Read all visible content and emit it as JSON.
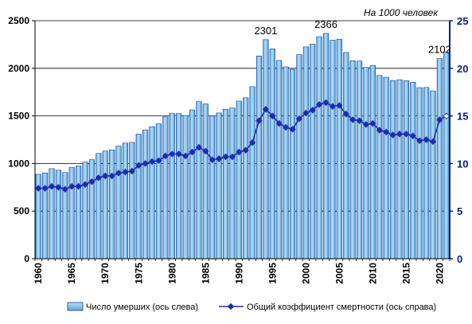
{
  "chart_data": {
    "type": "bar",
    "unit_label": "На 1000 человек",
    "x": [
      1960,
      1961,
      1962,
      1963,
      1964,
      1965,
      1966,
      1967,
      1968,
      1969,
      1970,
      1971,
      1972,
      1973,
      1974,
      1975,
      1976,
      1977,
      1978,
      1979,
      1980,
      1981,
      1982,
      1983,
      1984,
      1985,
      1986,
      1987,
      1988,
      1989,
      1990,
      1991,
      1992,
      1993,
      1994,
      1995,
      1996,
      1997,
      1998,
      1999,
      2000,
      2001,
      2002,
      2003,
      2004,
      2005,
      2006,
      2007,
      2008,
      2009,
      2010,
      2011,
      2012,
      2013,
      2014,
      2015,
      2016,
      2017,
      2018,
      2019,
      2020,
      2021
    ],
    "x_tick_labels": [
      "1960",
      "1965",
      "1970",
      "1975",
      "1980",
      "1985",
      "1990",
      "1995",
      "2000",
      "2005",
      "2010",
      "2015",
      "2020"
    ],
    "series": [
      {
        "name": "Число умерших (ось слева)",
        "type": "bar",
        "axis": "left",
        "color": "#7fc4ee",
        "values": [
          887,
          901,
          946,
          929,
          905,
          958,
          974,
          1015,
          1040,
          1106,
          1131,
          1143,
          1182,
          1214,
          1222,
          1309,
          1353,
          1386,
          1417,
          1490,
          1525,
          1524,
          1504,
          1563,
          1650,
          1625,
          1498,
          1531,
          1569,
          1583,
          1656,
          1690,
          1807,
          2129,
          2301,
          2204,
          2082,
          2015,
          1988,
          2144,
          2225,
          2255,
          2332,
          2366,
          2295,
          2304,
          2166,
          2080,
          2076,
          2010,
          2029,
          1925,
          1906,
          1871,
          1880,
          1870,
          1854,
          1797,
          1799,
          1763,
          2102,
          2168
        ],
        "labels": [
          {
            "index": 34,
            "text": "2301"
          },
          {
            "index": 43,
            "text": "2366"
          },
          {
            "index": 60,
            "text": "2102"
          }
        ]
      },
      {
        "name": "Общий коэффициент смертности (ось справа)",
        "type": "line",
        "axis": "right",
        "color": "#1a2eb0",
        "values": [
          7.4,
          7.4,
          7.6,
          7.5,
          7.3,
          7.6,
          7.6,
          7.8,
          8.1,
          8.5,
          8.7,
          8.7,
          9.0,
          9.1,
          9.2,
          9.8,
          10.0,
          10.2,
          10.3,
          10.8,
          11.0,
          11.0,
          10.8,
          11.2,
          11.7,
          11.3,
          10.4,
          10.5,
          10.7,
          10.7,
          11.2,
          11.4,
          12.2,
          14.5,
          15.7,
          15.0,
          14.2,
          13.8,
          13.6,
          14.7,
          15.3,
          15.6,
          16.2,
          16.4,
          16.0,
          16.1,
          15.2,
          14.6,
          14.5,
          14.1,
          14.2,
          13.5,
          13.3,
          13.0,
          13.1,
          13.1,
          12.9,
          12.4,
          12.5,
          12.3,
          14.6,
          15.0
        ]
      }
    ],
    "y_left": {
      "min": 0,
      "max": 2500,
      "ticks": [
        0,
        500,
        1000,
        1500,
        2000,
        2500
      ]
    },
    "y_right": {
      "min": 0,
      "max": 25,
      "ticks": [
        0,
        5,
        10,
        15,
        20,
        25
      ]
    },
    "grid": "horizontal",
    "legend_position": "bottom",
    "colors": {
      "bar_fill": "#7fc4ee",
      "bar_stroke": "#1a3a8a",
      "line": "#1a2eb0",
      "right_axis": "#0a1e7a",
      "grid": "#000000"
    }
  }
}
